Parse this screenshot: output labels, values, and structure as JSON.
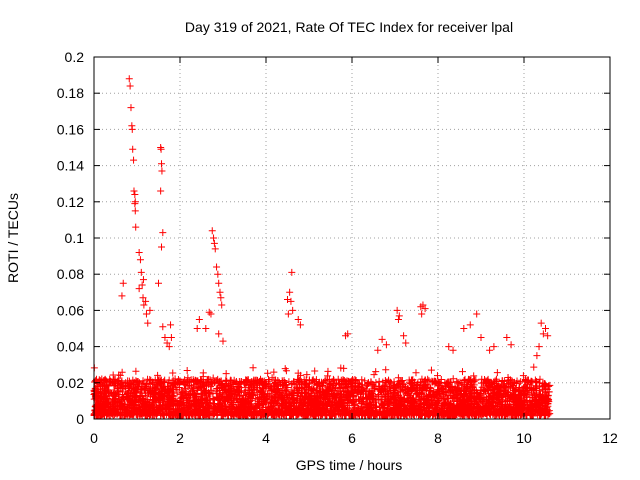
{
  "chart_data": {
    "type": "scatter",
    "title": "Day 319 of 2021, Rate Of TEC Index for receiver lpal",
    "xlabel": "GPS time / hours",
    "ylabel": "ROTI / TECUs",
    "xlim": [
      0,
      12
    ],
    "ylim": [
      0,
      0.2
    ],
    "x_ticks": [
      "0",
      "2",
      "4",
      "6",
      "8",
      "10",
      "12"
    ],
    "y_ticks": [
      "0",
      "0.02",
      "0.04",
      "0.06",
      "0.08",
      "0.1",
      "0.12",
      "0.14",
      "0.16",
      "0.18",
      "0.2"
    ],
    "grid": true,
    "marker": "+",
    "series_color": "#ff0000",
    "series": [
      {
        "name": "ROTI",
        "points": [
          [
            0.65,
            0.068
          ],
          [
            0.68,
            0.075
          ],
          [
            0.82,
            0.188
          ],
          [
            0.84,
            0.184
          ],
          [
            0.86,
            0.172
          ],
          [
            0.88,
            0.162
          ],
          [
            0.89,
            0.16
          ],
          [
            0.9,
            0.149
          ],
          [
            0.92,
            0.143
          ],
          [
            0.93,
            0.126
          ],
          [
            0.95,
            0.124
          ],
          [
            0.96,
            0.12
          ],
          [
            0.96,
            0.115
          ],
          [
            0.97,
            0.106
          ],
          [
            0.95,
            0.119
          ],
          [
            1.05,
            0.092
          ],
          [
            1.08,
            0.088
          ],
          [
            1.1,
            0.081
          ],
          [
            1.12,
            0.074
          ],
          [
            1.14,
            0.067
          ],
          [
            1.16,
            0.063
          ],
          [
            1.2,
            0.065
          ],
          [
            1.22,
            0.058
          ],
          [
            1.25,
            0.053
          ],
          [
            1.3,
            0.06
          ],
          [
            1.05,
            0.072
          ],
          [
            1.15,
            0.077
          ],
          [
            1.55,
            0.15
          ],
          [
            1.56,
            0.149
          ],
          [
            1.57,
            0.141
          ],
          [
            1.58,
            0.137
          ],
          [
            1.55,
            0.126
          ],
          [
            1.6,
            0.103
          ],
          [
            1.57,
            0.095
          ],
          [
            1.5,
            0.075
          ],
          [
            1.6,
            0.051
          ],
          [
            1.65,
            0.045
          ],
          [
            1.7,
            0.042
          ],
          [
            1.75,
            0.04
          ],
          [
            1.8,
            0.045
          ],
          [
            1.78,
            0.052
          ],
          [
            2.75,
            0.104
          ],
          [
            2.78,
            0.1
          ],
          [
            2.8,
            0.097
          ],
          [
            2.82,
            0.094
          ],
          [
            2.85,
            0.084
          ],
          [
            2.88,
            0.08
          ],
          [
            2.9,
            0.075
          ],
          [
            2.93,
            0.07
          ],
          [
            2.95,
            0.067
          ],
          [
            2.97,
            0.063
          ],
          [
            2.68,
            0.059
          ],
          [
            2.72,
            0.058
          ],
          [
            2.6,
            0.05
          ],
          [
            2.4,
            0.05
          ],
          [
            2.45,
            0.055
          ],
          [
            2.9,
            0.047
          ],
          [
            3.0,
            0.043
          ],
          [
            4.55,
            0.07
          ],
          [
            4.5,
            0.066
          ],
          [
            4.6,
            0.081
          ],
          [
            4.58,
            0.065
          ],
          [
            4.62,
            0.06
          ],
          [
            4.52,
            0.058
          ],
          [
            4.75,
            0.055
          ],
          [
            4.8,
            0.052
          ],
          [
            5.85,
            0.046
          ],
          [
            5.9,
            0.047
          ],
          [
            6.6,
            0.038
          ],
          [
            6.7,
            0.044
          ],
          [
            6.8,
            0.041
          ],
          [
            7.05,
            0.06
          ],
          [
            7.1,
            0.057
          ],
          [
            7.08,
            0.055
          ],
          [
            7.2,
            0.046
          ],
          [
            7.25,
            0.042
          ],
          [
            7.6,
            0.062
          ],
          [
            7.65,
            0.063
          ],
          [
            7.7,
            0.061
          ],
          [
            7.62,
            0.058
          ],
          [
            8.25,
            0.04
          ],
          [
            8.35,
            0.038
          ],
          [
            8.6,
            0.05
          ],
          [
            8.75,
            0.052
          ],
          [
            8.9,
            0.058
          ],
          [
            9.0,
            0.045
          ],
          [
            9.2,
            0.038
          ],
          [
            9.3,
            0.04
          ],
          [
            9.6,
            0.045
          ],
          [
            9.7,
            0.041
          ],
          [
            10.4,
            0.053
          ],
          [
            10.5,
            0.05
          ],
          [
            10.45,
            0.047
          ],
          [
            10.35,
            0.04
          ],
          [
            10.55,
            0.046
          ],
          [
            10.3,
            0.035
          ]
        ],
        "background_band": {
          "x_range": [
            0,
            10.6
          ],
          "y_typical_range": [
            0.002,
            0.022
          ],
          "y_peak": 0.03,
          "density_points_per_hour": 420
        }
      }
    ]
  }
}
